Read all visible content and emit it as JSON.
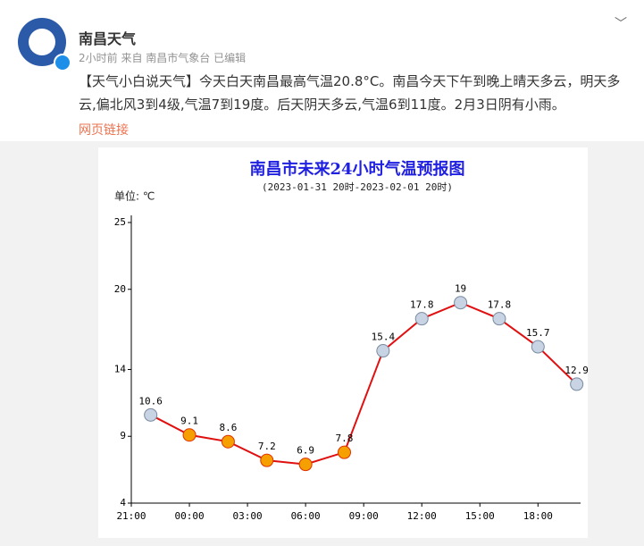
{
  "post": {
    "author": "南昌天气",
    "meta": "2小时前 来自 南昌市气象台 已编辑",
    "text": "【天气小白说天气】今天白天南昌最高气温20.8°C。南昌今天下午到晚上晴天多云，明天多云,偏北风3到4级,气温7到19度。后天阴天多云,气温6到11度。2月3日阴有小雨。",
    "link": "网页链接"
  },
  "chart_data": {
    "type": "line",
    "title": "南昌市未来24小时气温预报图",
    "subtitle": "(2023-01-31 20时-2023-02-01 20时)",
    "y_label": "单位: ℃",
    "x": [
      1,
      3,
      5,
      7,
      9,
      11,
      13,
      15,
      17,
      19,
      21,
      23
    ],
    "series": [
      {
        "name": "气温",
        "color": "#e01010",
        "values": [
          10.6,
          9.1,
          8.6,
          7.2,
          6.9,
          7.8,
          15.4,
          17.8,
          19.0,
          17.8,
          15.7,
          12.9
        ]
      }
    ],
    "xlim": [
      0,
      23.2
    ],
    "xticks": [
      {
        "value": 0,
        "label": "21:00"
      },
      {
        "value": 3,
        "label": "00:00"
      },
      {
        "value": 6,
        "label": "03:00"
      },
      {
        "value": 9,
        "label": "06:00"
      },
      {
        "value": 12,
        "label": "09:00"
      },
      {
        "value": 15,
        "label": "12:00"
      },
      {
        "value": 18,
        "label": "15:00"
      },
      {
        "value": 21,
        "label": "18:00"
      }
    ],
    "ylim": [
      4,
      25
    ],
    "yticks": [
      4,
      9,
      14,
      20,
      25
    ]
  }
}
